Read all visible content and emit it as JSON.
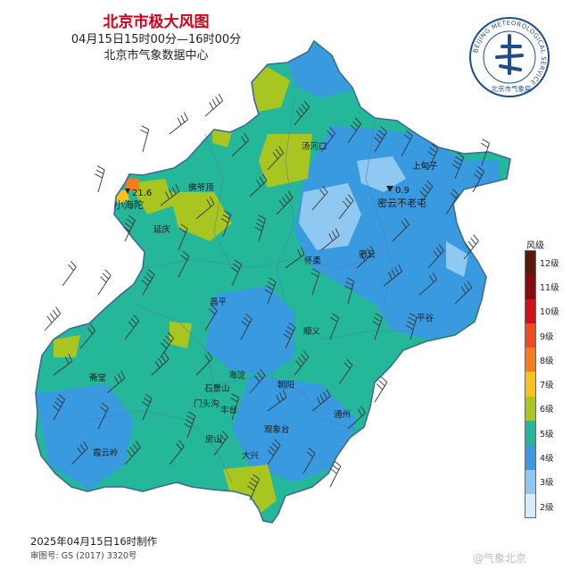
{
  "header": {
    "title": "北京市极大风图",
    "time_range": "04月15日15时00分—16时00分",
    "issuer": "北京市气象数据中心"
  },
  "logo": {
    "ring_text": "BEIJING METEOROLOGICAL SERVICE",
    "name": "北京市气象局"
  },
  "places": [
    {
      "name": "汤河口"
    },
    {
      "name": "上甸子"
    },
    {
      "name": "佛爷顶"
    },
    {
      "name": "小海陀"
    },
    {
      "name": "延庆"
    },
    {
      "name": "密云不老屯"
    },
    {
      "name": "怀柔"
    },
    {
      "name": "密云"
    },
    {
      "name": "昌平"
    },
    {
      "name": "平谷"
    },
    {
      "name": "顺义"
    },
    {
      "name": "斋堂"
    },
    {
      "name": "海淀"
    },
    {
      "name": "石景山"
    },
    {
      "name": "朝阳"
    },
    {
      "name": "门头沟"
    },
    {
      "name": "丰台"
    },
    {
      "name": "通州"
    },
    {
      "name": "观象台"
    },
    {
      "name": "房山"
    },
    {
      "name": "霞云岭"
    },
    {
      "name": "大兴"
    }
  ],
  "max_stations": [
    {
      "station": "小海陀",
      "value": "21.6"
    },
    {
      "station": "密云不老屯",
      "value": "0.9"
    }
  ],
  "legend": {
    "title": "风级",
    "levels": [
      {
        "label": "12级",
        "color": "#5a1a0a"
      },
      {
        "label": "11级",
        "color": "#8a0a10"
      },
      {
        "label": "10级",
        "color": "#d2101c"
      },
      {
        "label": "9级",
        "color": "#f04a20"
      },
      {
        "label": "8级",
        "color": "#f57c1c"
      },
      {
        "label": "7级",
        "color": "#f6c21c"
      },
      {
        "label": "6级",
        "color": "#a9c520"
      },
      {
        "label": "5级",
        "color": "#25b79a"
      },
      {
        "label": "4级",
        "color": "#3a9ae0"
      },
      {
        "label": "3级",
        "color": "#8fc8f0"
      },
      {
        "label": "2级",
        "color": "#d8edf8"
      }
    ]
  },
  "footer": {
    "made": "2025年04月15日16时制作",
    "approval": "审图号: GS (2017) 3320号"
  },
  "watermark": "@气象北京",
  "colors": {
    "title": "#d0021b",
    "level_6": "#a9c520",
    "level_5": "#25b79a",
    "level_4": "#3a9ae0",
    "level_3": "#8fc8f0"
  }
}
